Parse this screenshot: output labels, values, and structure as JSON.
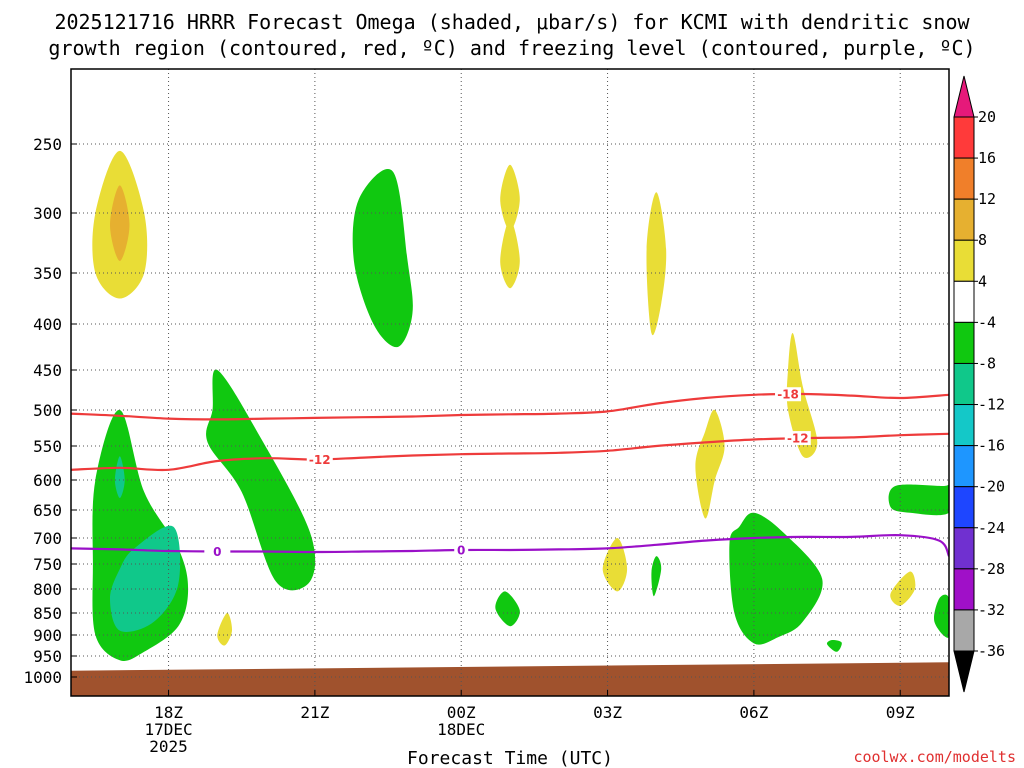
{
  "chart_data": {
    "type": "time-height cross section",
    "title_lines": [
      "2025121716 HRRR Forecast Omega (shaded, μbar/s) for KCMI with dendritic snow",
      "growth region (contoured, red, ºC) and freezing level (contoured, purple, ºC)"
    ],
    "xlabel": "Forecast Time (UTC)",
    "credit": "coolwx.com/modelts",
    "x_ticks": [
      {
        "hour": 18,
        "lines": [
          "18Z",
          "17DEC",
          "2025"
        ]
      },
      {
        "hour": 21,
        "lines": [
          "21Z"
        ]
      },
      {
        "hour": 24,
        "lines": [
          "00Z",
          "18DEC"
        ]
      },
      {
        "hour": 27,
        "lines": [
          "03Z"
        ]
      },
      {
        "hour": 30,
        "lines": [
          "06Z"
        ]
      },
      {
        "hour": 33,
        "lines": [
          "09Z"
        ]
      }
    ],
    "xlim_hours": [
      16,
      34
    ],
    "y_ticks": [
      250,
      300,
      350,
      400,
      450,
      500,
      550,
      600,
      650,
      700,
      750,
      800,
      850,
      900,
      950,
      1000
    ],
    "ylim_hpa": [
      200,
      1025
    ],
    "colorbar_labels": [
      "20",
      "16",
      "12",
      "8",
      "4",
      "-4",
      "-8",
      "-12",
      "-16",
      "-20",
      "-24",
      "-28",
      "-32",
      "-36"
    ],
    "colorbar_colors": [
      "#ff3a3a",
      "#f07f2a",
      "#e6b030",
      "#e9dd36",
      "#ffffff",
      "#10c810",
      "#10c88a",
      "#14c8c8",
      "#1e96ff",
      "#1e46ff",
      "#7030d0",
      "#a010c8",
      "#a8a8a8"
    ],
    "colorbar_top_arrow_color": "#e6197a",
    "colorbar_bottom_arrow_color": "#000000",
    "contours": [
      {
        "name": "dendritic-minus-18",
        "label": "-18",
        "color": "#ee3b3b",
        "hours": [
          16,
          17,
          18,
          19,
          20,
          21,
          22,
          23,
          24,
          25,
          26,
          27,
          28,
          29,
          30,
          31,
          32,
          33,
          34
        ],
        "hpa": [
          505,
          508,
          512,
          513,
          512,
          511,
          510,
          509,
          507,
          506,
          505,
          502,
          492,
          485,
          481,
          480,
          482,
          485,
          481
        ],
        "label_hour": 30.7
      },
      {
        "name": "dendritic-minus-12",
        "label": "-12",
        "color": "#ee3b3b",
        "hours": [
          16,
          17,
          18,
          19,
          20,
          21,
          22,
          23,
          24,
          25,
          26,
          27,
          28,
          29,
          30,
          31,
          32,
          33,
          34
        ],
        "hpa": [
          585,
          582,
          585,
          572,
          568,
          570,
          567,
          564,
          562,
          561,
          560,
          557,
          550,
          545,
          541,
          539,
          538,
          535,
          533
        ],
        "label_hour": 21.1
      },
      {
        "name": "freezing-level-0",
        "label": "0",
        "color": "#9a10c8",
        "hours": [
          16,
          17,
          18,
          19,
          20,
          21,
          22,
          23,
          24,
          25,
          26,
          27,
          28,
          29,
          30,
          31,
          32,
          33,
          33.8,
          34
        ],
        "hpa": [
          720,
          722,
          725,
          726,
          726,
          727,
          726,
          725,
          723,
          723,
          722,
          720,
          713,
          705,
          700,
          698,
          698,
          695,
          705,
          735
        ],
        "label_hour": 19.0
      }
    ],
    "omega_regions": [
      {
        "name": "ascent-green-a",
        "value": -6,
        "color": "#10c810",
        "hours": [
          17.0,
          17.5,
          18.2,
          18.4,
          18.2,
          17.5,
          17.0,
          16.5,
          16.45,
          16.5
        ],
        "hpa": [
          500,
          620,
          720,
          800,
          880,
          940,
          960,
          900,
          750,
          600
        ]
      },
      {
        "name": "ascent-teal-a",
        "value": -10,
        "color": "#10c88a",
        "hours": [
          17.3,
          18.1,
          18.2,
          17.7,
          17.0,
          16.8,
          17.0
        ],
        "hpa": [
          720,
          680,
          790,
          870,
          890,
          820,
          760
        ]
      },
      {
        "name": "ascent-teal-a2",
        "value": -10,
        "color": "#10c88a",
        "hours": [
          17.0,
          17.1,
          17.0,
          16.9
        ],
        "hpa": [
          565,
          600,
          630,
          600
        ]
      },
      {
        "name": "ascent-green-b",
        "value": -6,
        "color": "#10c810",
        "hours": [
          19.0,
          19.9,
          20.9,
          20.9,
          20.2,
          19.5,
          18.8,
          18.9
        ],
        "hpa": [
          450,
          540,
          690,
          785,
          785,
          620,
          545,
          500
        ]
      },
      {
        "name": "ascent-green-c",
        "value": -6,
        "color": "#10c810",
        "hours": [
          22.6,
          22.9,
          23.0,
          22.7,
          22.2,
          21.8,
          21.9
        ],
        "hpa": [
          270,
          340,
          390,
          425,
          400,
          340,
          290
        ]
      },
      {
        "name": "ascent-green-d",
        "value": -6,
        "color": "#10c810",
        "hours": [
          30.0,
          30.6,
          31.4,
          31.0,
          30.5,
          30.0,
          29.6,
          29.5,
          29.7
        ],
        "hpa": [
          655,
          690,
          780,
          870,
          905,
          920,
          850,
          710,
          680
        ]
      },
      {
        "name": "ascent-green-e",
        "value": -6,
        "color": "#10c810",
        "hours": [
          33.9,
          34.0,
          34.0,
          33.2,
          32.8,
          32.9
        ],
        "hpa": [
          610,
          605,
          655,
          655,
          645,
          610
        ]
      },
      {
        "name": "ascent-green-f",
        "value": -6,
        "color": "#10c810",
        "hours": [
          33.8,
          34.0,
          34.0,
          33.7
        ],
        "hpa": [
          820,
          820,
          905,
          870
        ]
      },
      {
        "name": "ascent-green-g",
        "value": -6,
        "color": "#10c810",
        "hours": [
          24.9,
          25.2,
          25.0,
          24.7
        ],
        "hpa": [
          805,
          845,
          880,
          840
        ]
      },
      {
        "name": "ascent-green-h",
        "value": -6,
        "color": "#10c810",
        "hours": [
          28.0,
          28.1,
          27.95,
          27.9
        ],
        "hpa": [
          735,
          760,
          815,
          765
        ]
      },
      {
        "name": "ascent-green-i",
        "value": -6,
        "color": "#10c810",
        "hours": [
          31.6,
          31.8,
          31.7,
          31.5
        ],
        "hpa": [
          912,
          918,
          940,
          922
        ]
      },
      {
        "name": "descent-yellow-a",
        "value": 6,
        "color": "#e9dd36",
        "hours": [
          17.0,
          17.5,
          17.5,
          17.0,
          16.5,
          16.5
        ],
        "hpa": [
          255,
          300,
          350,
          375,
          350,
          300
        ]
      },
      {
        "name": "descent-orange-a",
        "value": 10,
        "color": "#e6b030",
        "hours": [
          17.0,
          17.2,
          17.0,
          16.8
        ],
        "hpa": [
          280,
          310,
          340,
          310
        ]
      },
      {
        "name": "descent-yellow-b",
        "value": 6,
        "color": "#e9dd36",
        "hours": [
          25.0,
          25.2,
          25.0,
          24.8
        ],
        "hpa": [
          265,
          290,
          315,
          290
        ]
      },
      {
        "name": "descent-yellow-c",
        "value": 6,
        "color": "#e9dd36",
        "hours": [
          25.0,
          25.2,
          25.0,
          24.8
        ],
        "hpa": [
          305,
          340,
          365,
          340
        ]
      },
      {
        "name": "descent-yellow-d",
        "value": 6,
        "color": "#e9dd36",
        "hours": [
          28.0,
          28.2,
          28.1,
          27.9,
          27.8
        ],
        "hpa": [
          285,
          330,
          380,
          410,
          330
        ]
      },
      {
        "name": "descent-yellow-e",
        "value": 6,
        "color": "#e9dd36",
        "hours": [
          30.8,
          31.0,
          31.3,
          31.0,
          30.7,
          30.7
        ],
        "hpa": [
          410,
          470,
          545,
          565,
          500,
          450
        ]
      },
      {
        "name": "descent-yellow-f",
        "value": 6,
        "color": "#e9dd36",
        "hours": [
          29.2,
          29.4,
          29.2,
          29.0,
          28.8,
          29.0
        ],
        "hpa": [
          500,
          550,
          600,
          665,
          580,
          530
        ]
      },
      {
        "name": "descent-yellow-g",
        "value": 6,
        "color": "#e9dd36",
        "hours": [
          27.2,
          27.4,
          27.2,
          26.9
        ],
        "hpa": [
          700,
          760,
          805,
          760
        ]
      },
      {
        "name": "descent-yellow-h",
        "value": 6,
        "color": "#e9dd36",
        "hours": [
          33.2,
          33.3,
          33.0,
          32.8
        ],
        "hpa": [
          765,
          800,
          835,
          810
        ]
      },
      {
        "name": "descent-yellow-i",
        "value": 6,
        "color": "#e9dd36",
        "hours": [
          19.2,
          19.3,
          19.15,
          19.0
        ],
        "hpa": [
          850,
          890,
          925,
          900
        ]
      }
    ],
    "terrain": {
      "color": "#a0522d",
      "hours": [
        16,
        34
      ],
      "top_hpa_left": 985,
      "top_hpa_right": 965
    }
  }
}
